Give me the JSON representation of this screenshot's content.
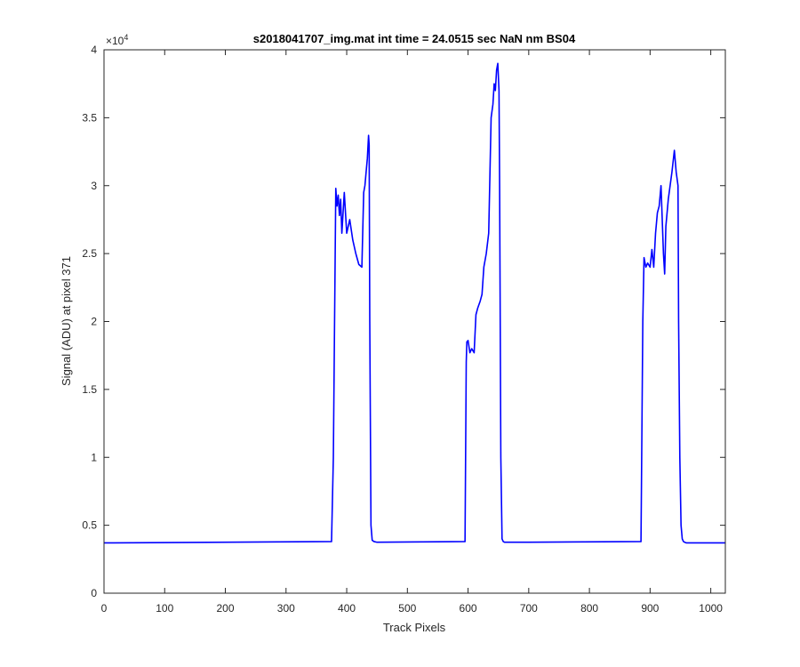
{
  "chart_data": {
    "type": "line",
    "title": "s2018041707_img.mat int time = 24.0515 sec  NaN nm BS04",
    "xlabel": "Track Pixels",
    "ylabel": "Signal (ADU) at pixel 371",
    "xlim": [
      0,
      1024
    ],
    "ylim": [
      0,
      40000
    ],
    "y_exponent_label": "×10",
    "y_exponent_power": "4",
    "x_ticks": [
      0,
      100,
      200,
      300,
      400,
      500,
      600,
      700,
      800,
      900,
      1000
    ],
    "x_tick_labels": [
      "0",
      "100",
      "200",
      "300",
      "400",
      "500",
      "600",
      "700",
      "800",
      "900",
      "1000"
    ],
    "y_ticks": [
      0,
      5000,
      10000,
      15000,
      20000,
      25000,
      30000,
      35000,
      40000
    ],
    "y_tick_labels": [
      "0",
      "0.5",
      "1",
      "1.5",
      "2",
      "2.5",
      "3",
      "3.5",
      "4"
    ],
    "grid": false,
    "series": [
      {
        "color": "#0000ff",
        "x": [
          0,
          375,
          378,
          380,
          382,
          384,
          386,
          388,
          390,
          392,
          394,
          396,
          400,
          405,
          410,
          415,
          420,
          425,
          428,
          430,
          432,
          434,
          436,
          437,
          438,
          440,
          442,
          445,
          450,
          595,
          597,
          598,
          600,
          603,
          606,
          610,
          613,
          616,
          620,
          623,
          626,
          630,
          634,
          638,
          641,
          643,
          645,
          647,
          649,
          651,
          652,
          654,
          656,
          658,
          660,
          700,
          885,
          888,
          890,
          893,
          896,
          900,
          903,
          906,
          909,
          912,
          915,
          918,
          920,
          922,
          924,
          926,
          928,
          930,
          933,
          936,
          940,
          943,
          946,
          947,
          949,
          951,
          953,
          955,
          957,
          960,
          1024
        ],
        "y": [
          3700,
          3800,
          10000,
          20000,
          29800,
          28500,
          29300,
          27800,
          29000,
          26500,
          28000,
          29500,
          26500,
          27500,
          26000,
          25000,
          24200,
          24000,
          29500,
          30000,
          31000,
          32000,
          33700,
          33000,
          20000,
          5000,
          3900,
          3800,
          3750,
          3800,
          17000,
          18500,
          18600,
          17700,
          18000,
          17700,
          20500,
          21000,
          21500,
          22000,
          24000,
          25000,
          26500,
          35000,
          36000,
          37500,
          37000,
          38500,
          39000,
          37000,
          30000,
          10000,
          4000,
          3800,
          3750,
          3750,
          3800,
          20000,
          24700,
          24000,
          24300,
          24000,
          25300,
          24000,
          26500,
          28000,
          28500,
          30000,
          27500,
          25000,
          23500,
          27000,
          28000,
          29000,
          30000,
          31000,
          32600,
          31000,
          30000,
          20000,
          10000,
          5000,
          4000,
          3800,
          3750,
          3700,
          3700
        ]
      }
    ]
  }
}
